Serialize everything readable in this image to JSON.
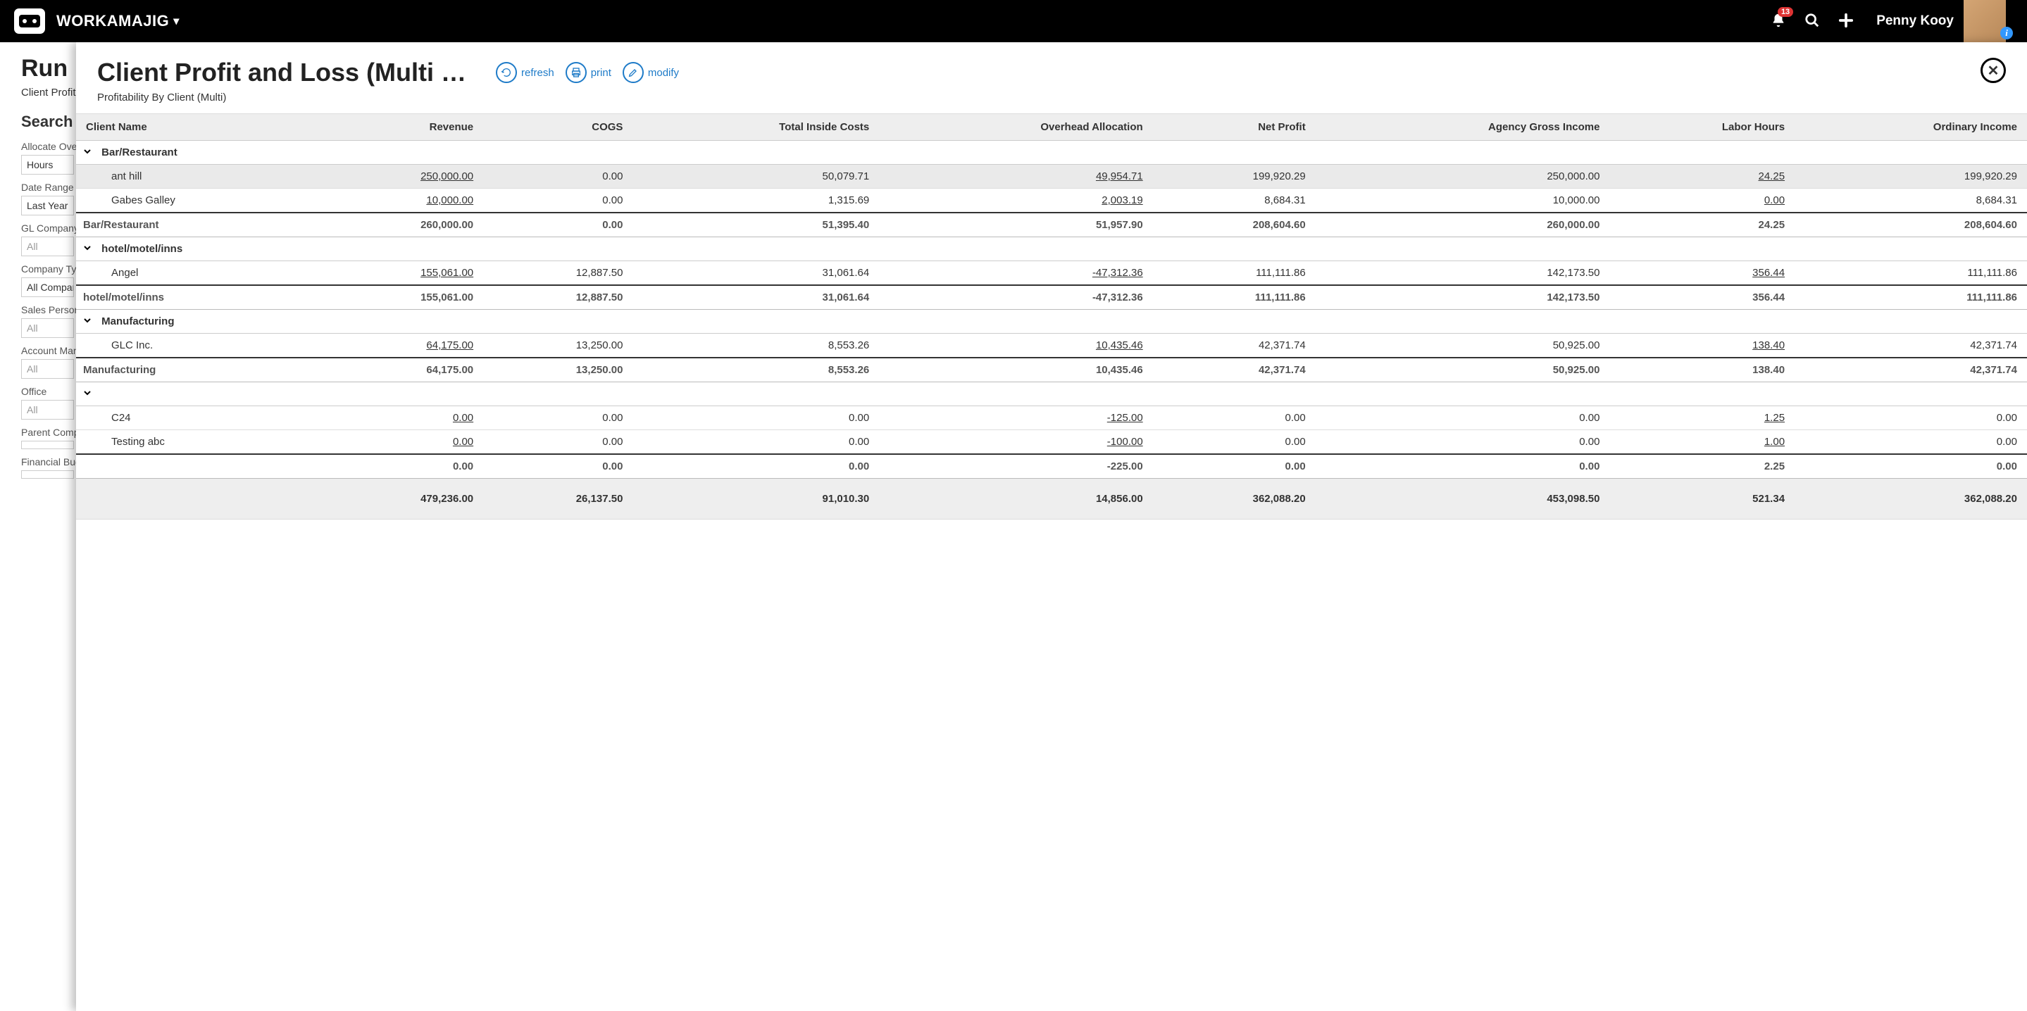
{
  "topbar": {
    "brand": "WORKAMAJIG",
    "notification_count": "13",
    "username": "Penny Kooy"
  },
  "left": {
    "title": "Run",
    "subtitle": "Client Profit a",
    "section": "Search C",
    "filters": [
      {
        "label": "Allocate Ove",
        "value": "Hours",
        "ph": false
      },
      {
        "label": "Date Range",
        "value": "Last Year",
        "ph": false
      },
      {
        "label": "GL Company",
        "value": "All",
        "ph": true
      },
      {
        "label": "Company Ty",
        "value": "All Compan",
        "ph": false
      },
      {
        "label": "Sales Person",
        "value": "All",
        "ph": true
      },
      {
        "label": "Account Man",
        "value": "All",
        "ph": true
      },
      {
        "label": "Office",
        "value": "All",
        "ph": true
      },
      {
        "label": "Parent Comp",
        "value": "",
        "ph": false
      },
      {
        "label": "Financial Bud",
        "value": "",
        "ph": false
      }
    ]
  },
  "report": {
    "title": "Client Profit and Loss (Multi Vi...",
    "subtitle": "Profitability By Client (Multi)",
    "actions": {
      "refresh": "refresh",
      "print": "print",
      "modify": "modify"
    },
    "columns": [
      "Client Name",
      "Revenue",
      "COGS",
      "Total Inside Costs",
      "Overhead Allocation",
      "Net Profit",
      "Agency Gross Income",
      "Labor Hours",
      "Ordinary Income"
    ],
    "groups": [
      {
        "name": "Bar/Restaurant",
        "rows": [
          {
            "name": "ant hill",
            "vals": [
              "250,000.00",
              "0.00",
              "50,079.71",
              "49,954.71",
              "199,920.29",
              "250,000.00",
              "24.25",
              "199,920.29"
            ],
            "u": [
              0,
              3,
              6
            ],
            "selected": true
          },
          {
            "name": "Gabes Galley",
            "vals": [
              "10,000.00",
              "0.00",
              "1,315.69",
              "2,003.19",
              "8,684.31",
              "10,000.00",
              "0.00",
              "8,684.31"
            ],
            "u": [
              0,
              3,
              6
            ]
          }
        ],
        "subtotal": {
          "name": "Bar/Restaurant",
          "vals": [
            "260,000.00",
            "0.00",
            "51,395.40",
            "51,957.90",
            "208,604.60",
            "260,000.00",
            "24.25",
            "208,604.60"
          ]
        }
      },
      {
        "name": "hotel/motel/inns",
        "rows": [
          {
            "name": "Angel",
            "vals": [
              "155,061.00",
              "12,887.50",
              "31,061.64",
              "-47,312.36",
              "111,111.86",
              "142,173.50",
              "356.44",
              "111,111.86"
            ],
            "u": [
              0,
              3,
              6
            ]
          }
        ],
        "subtotal": {
          "name": "hotel/motel/inns",
          "vals": [
            "155,061.00",
            "12,887.50",
            "31,061.64",
            "-47,312.36",
            "111,111.86",
            "142,173.50",
            "356.44",
            "111,111.86"
          ]
        }
      },
      {
        "name": "Manufacturing",
        "rows": [
          {
            "name": "GLC Inc.",
            "vals": [
              "64,175.00",
              "13,250.00",
              "8,553.26",
              "10,435.46",
              "42,371.74",
              "50,925.00",
              "138.40",
              "42,371.74"
            ],
            "u": [
              0,
              3,
              6
            ]
          }
        ],
        "subtotal": {
          "name": "Manufacturing",
          "vals": [
            "64,175.00",
            "13,250.00",
            "8,553.26",
            "10,435.46",
            "42,371.74",
            "50,925.00",
            "138.40",
            "42,371.74"
          ]
        }
      },
      {
        "name": "",
        "rows": [
          {
            "name": "C24",
            "vals": [
              "0.00",
              "0.00",
              "0.00",
              "-125.00",
              "0.00",
              "0.00",
              "1.25",
              "0.00"
            ],
            "u": [
              0,
              3,
              6
            ]
          },
          {
            "name": "Testing abc",
            "vals": [
              "0.00",
              "0.00",
              "0.00",
              "-100.00",
              "0.00",
              "0.00",
              "1.00",
              "0.00"
            ],
            "u": [
              0,
              3,
              6
            ]
          }
        ],
        "subtotal": {
          "name": "",
          "vals": [
            "0.00",
            "0.00",
            "0.00",
            "-225.00",
            "0.00",
            "0.00",
            "2.25",
            "0.00"
          ]
        }
      }
    ],
    "grand": {
      "vals": [
        "479,236.00",
        "26,137.50",
        "91,010.30",
        "14,856.00",
        "362,088.20",
        "453,098.50",
        "521.34",
        "362,088.20"
      ]
    }
  }
}
